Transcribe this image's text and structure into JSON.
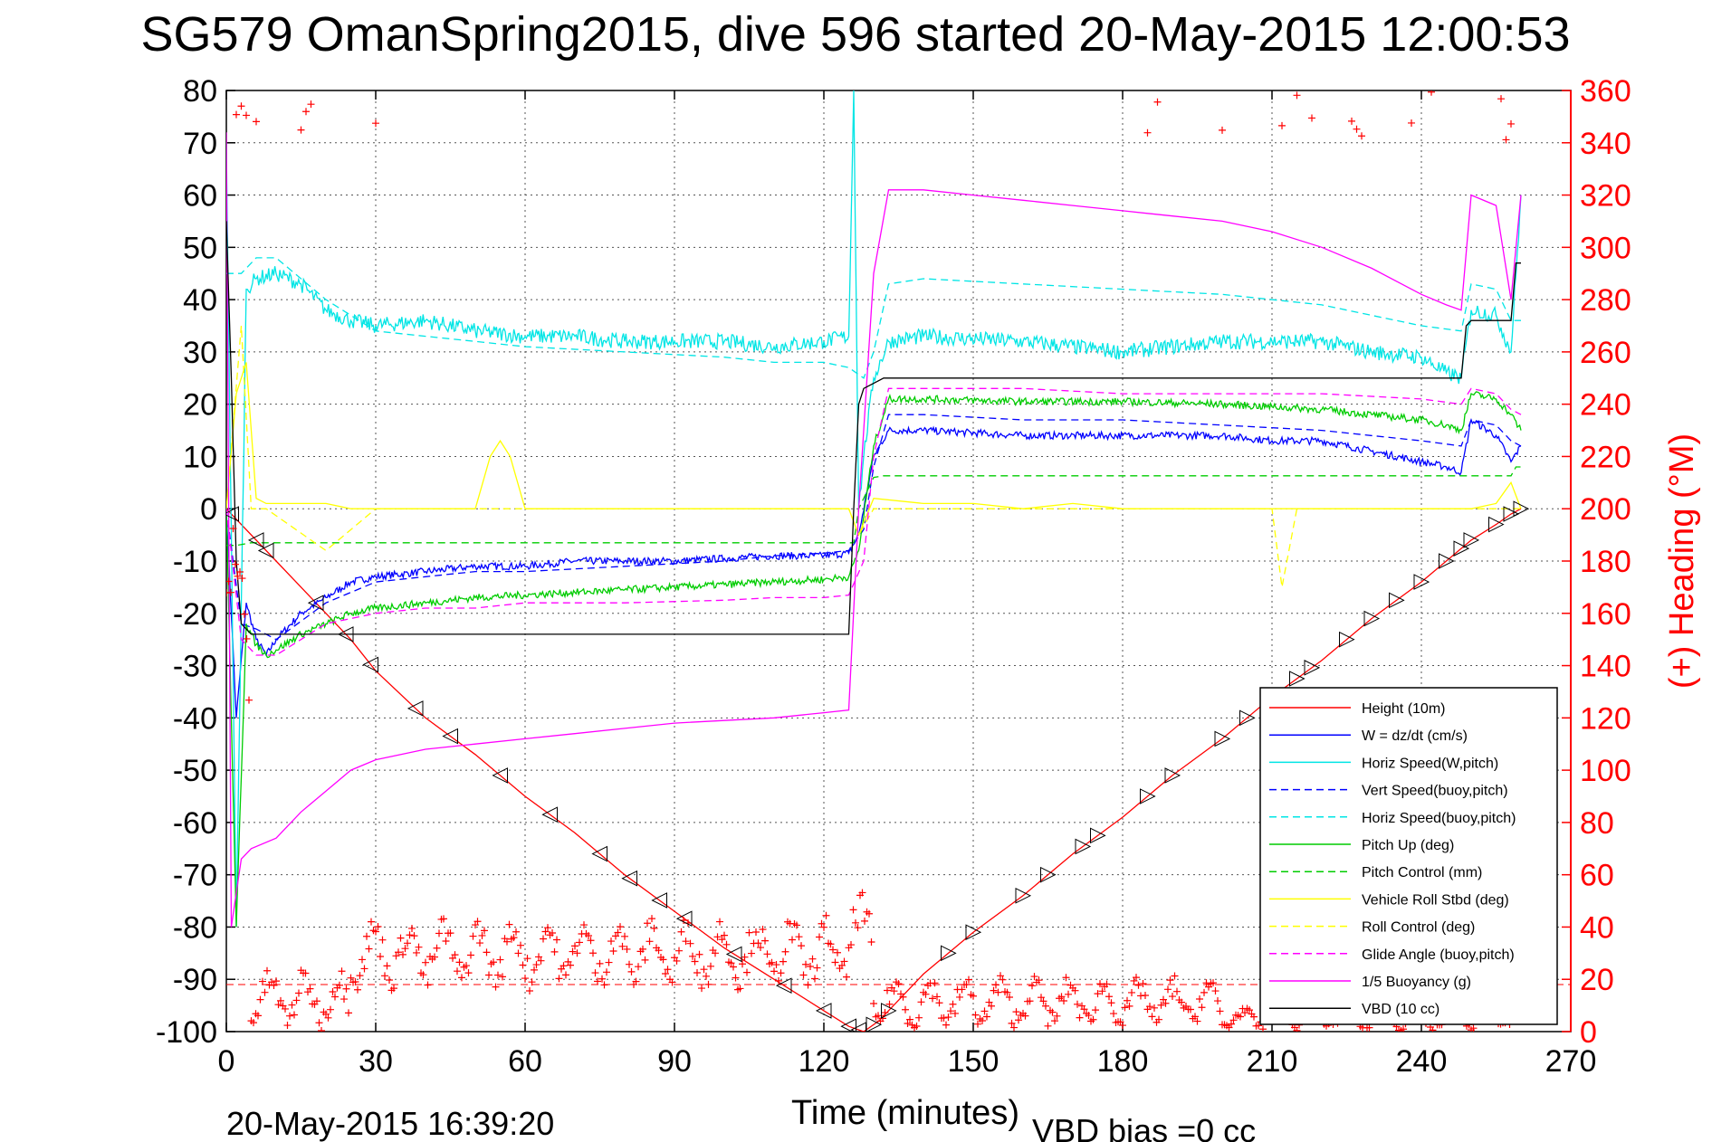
{
  "chart_data": {
    "type": "line",
    "title": "SG579 OmanSpring2015, dive 596 started 20-May-2015 12:00:53",
    "xlabel": "Time (minutes)",
    "ylabel": "",
    "ylabel_right": "(+) Heading (°M)",
    "xlim": [
      0,
      270
    ],
    "ylim": [
      -100,
      80
    ],
    "ylim_right": [
      0,
      360
    ],
    "x_ticks": [
      "0",
      "30",
      "60",
      "90",
      "120",
      "150",
      "180",
      "210",
      "240",
      "270"
    ],
    "y_ticks": [
      "80",
      "70",
      "60",
      "50",
      "40",
      "30",
      "20",
      "10",
      "0",
      "-10",
      "-20",
      "-30",
      "-40",
      "-50",
      "-60",
      "-70",
      "-80",
      "-90",
      "-100"
    ],
    "y_right_ticks": [
      "360",
      "340",
      "320",
      "300",
      "280",
      "260",
      "240",
      "220",
      "200",
      "180",
      "160",
      "140",
      "120",
      "100",
      "80",
      "60",
      "40",
      "20",
      "0"
    ],
    "grid": true,
    "legend_position": "bottom-right",
    "footer_left": "20-May-2015 16:39:20",
    "footer_right": "VBD bias =0 cc",
    "series": [
      {
        "name": "Height (10m)",
        "color": "#ff0000",
        "style": "solid",
        "x": [
          0,
          10,
          20,
          25,
          30,
          40,
          50,
          60,
          70,
          80,
          90,
          100,
          110,
          120,
          125,
          128,
          131,
          135,
          140,
          150,
          160,
          170,
          180,
          190,
          200,
          210,
          220,
          230,
          240,
          250,
          255,
          258,
          260
        ],
        "y": [
          0,
          -10,
          -20,
          -25,
          -31,
          -40,
          -47,
          -55,
          -62,
          -70,
          -77,
          -84,
          -90,
          -96,
          -99,
          -100,
          -98,
          -94,
          -89,
          -81,
          -74,
          -66,
          -59,
          -51,
          -44,
          -36,
          -29,
          -21,
          -14,
          -6,
          -3,
          -1,
          0
        ]
      },
      {
        "name": "W = dz/dt (cm/s)",
        "color": "#0000ff",
        "style": "solid",
        "x": [
          0,
          2,
          4,
          6,
          8,
          10,
          15,
          20,
          25,
          30,
          40,
          50,
          60,
          70,
          80,
          90,
          100,
          110,
          120,
          125,
          127,
          130,
          133,
          140,
          160,
          180,
          200,
          210,
          220,
          230,
          240,
          245,
          248,
          250,
          255,
          258,
          260
        ],
        "y": [
          0,
          -40,
          -18,
          -25,
          -28,
          -25,
          -20,
          -17,
          -14,
          -13,
          -12,
          -11,
          -11,
          -10,
          -10,
          -10,
          -9.5,
          -9,
          -9,
          -8.5,
          -5,
          10,
          15,
          15,
          14,
          14,
          14,
          13,
          13,
          11,
          9,
          8,
          7,
          17,
          14,
          9,
          12
        ]
      },
      {
        "name": "Horiz Speed(W,pitch)",
        "color": "#00e5e5",
        "style": "solid",
        "x": [
          0,
          2,
          4,
          6,
          10,
          15,
          20,
          25,
          30,
          40,
          50,
          60,
          70,
          80,
          90,
          100,
          110,
          120,
          125,
          126,
          127,
          128,
          130,
          133,
          140,
          160,
          180,
          200,
          210,
          220,
          230,
          240,
          245,
          248,
          250,
          255,
          258,
          260
        ],
        "y": [
          70,
          -80,
          42,
          44,
          45,
          43,
          38,
          36,
          35,
          36,
          34,
          33,
          33,
          32,
          32,
          32,
          31,
          32,
          33,
          80,
          0,
          10,
          25,
          32,
          33,
          32,
          30,
          32,
          32,
          32,
          30,
          29,
          26,
          25,
          38,
          37,
          30,
          60
        ]
      },
      {
        "name": "Vert Speed(buoy,pitch)",
        "color": "#0000ff",
        "style": "dashed",
        "x": [
          0,
          3,
          6,
          10,
          20,
          30,
          40,
          50,
          60,
          80,
          100,
          110,
          120,
          125,
          128,
          130,
          133,
          140,
          160,
          180,
          200,
          220,
          240,
          248,
          250,
          255,
          258,
          260
        ],
        "y": [
          0,
          -22,
          -23,
          -25,
          -18,
          -14,
          -13,
          -12,
          -12,
          -11,
          -10,
          -9,
          -8.5,
          -8,
          -4,
          8,
          18,
          18,
          17,
          17,
          16,
          15,
          13,
          12,
          17,
          16,
          13,
          12
        ]
      },
      {
        "name": "Horiz Speed(buoy,pitch)",
        "color": "#00e5e5",
        "style": "dashed",
        "x": [
          0,
          3,
          6,
          10,
          20,
          30,
          40,
          50,
          60,
          80,
          100,
          110,
          120,
          125,
          128,
          130,
          133,
          140,
          160,
          180,
          200,
          220,
          240,
          248,
          250,
          255,
          258,
          260
        ],
        "y": [
          45,
          45,
          48,
          48,
          40,
          34,
          33,
          32,
          31,
          30,
          29,
          28,
          28,
          27,
          25,
          30,
          43,
          44,
          43,
          42,
          41,
          39,
          35,
          34,
          43,
          42,
          36,
          36
        ]
      },
      {
        "name": "Pitch Up (deg)",
        "color": "#00cc00",
        "style": "solid",
        "x": [
          0,
          2,
          4,
          6,
          8,
          10,
          15,
          20,
          25,
          30,
          40,
          50,
          60,
          70,
          80,
          90,
          100,
          110,
          120,
          125,
          127,
          130,
          133,
          140,
          160,
          180,
          200,
          210,
          220,
          230,
          240,
          245,
          248,
          250,
          255,
          258,
          260
        ],
        "y": [
          0,
          -80,
          -22,
          -26,
          -28,
          -27,
          -24,
          -22,
          -20,
          -19,
          -18,
          -17,
          -16.5,
          -16,
          -15.5,
          -15,
          -14.5,
          -14,
          -13.5,
          -13,
          -8,
          12,
          21,
          21,
          20.5,
          20.5,
          20,
          19.5,
          19,
          18,
          17,
          16,
          15,
          22,
          21,
          18,
          15
        ]
      },
      {
        "name": "Pitch Control (mm)",
        "color": "#00cc00",
        "style": "dashed",
        "x": [
          0,
          2,
          5,
          126,
          127,
          130,
          132,
          258,
          259,
          260
        ],
        "y": [
          -7,
          -7,
          -6.5,
          -6.5,
          0,
          6,
          6.3,
          6.3,
          8,
          8
        ]
      },
      {
        "name": "Vehicle Roll Stbd (deg)",
        "color": "#ffff00",
        "style": "solid",
        "x": [
          0,
          2,
          4,
          6,
          8,
          10,
          20,
          25,
          30,
          40,
          50,
          53,
          55,
          57,
          60,
          70,
          80,
          90,
          100,
          110,
          120,
          125,
          127,
          130,
          140,
          150,
          160,
          170,
          180,
          190,
          200,
          210,
          220,
          230,
          240,
          250,
          255,
          258,
          260
        ],
        "y": [
          0,
          22,
          28,
          2,
          1,
          1,
          1,
          0,
          0,
          0,
          0,
          10,
          13,
          10,
          0,
          0,
          0,
          0,
          0,
          0,
          0,
          0,
          -5,
          2,
          1,
          1,
          0,
          1,
          0,
          0,
          0,
          0,
          0,
          0,
          0,
          0,
          1,
          5,
          0
        ]
      },
      {
        "name": "Roll Control (deg)",
        "color": "#ffff00",
        "style": "dashed",
        "x": [
          0,
          3,
          5,
          8,
          20,
          30,
          60,
          90,
          120,
          125,
          127,
          130,
          150,
          180,
          210,
          212,
          215,
          220,
          240,
          260
        ],
        "y": [
          0,
          35,
          0,
          0,
          -8,
          0,
          0,
          0,
          0,
          0,
          -5,
          0,
          0,
          0,
          0,
          -15,
          0,
          0,
          0,
          0
        ]
      },
      {
        "name": "Glide Angle (buoy,pitch)",
        "color": "#ff00ff",
        "style": "dashed",
        "x": [
          0,
          3,
          6,
          10,
          20,
          30,
          40,
          50,
          60,
          80,
          100,
          110,
          120,
          125,
          128,
          130,
          133,
          140,
          160,
          180,
          200,
          220,
          240,
          248,
          250,
          255,
          258,
          260
        ],
        "y": [
          0,
          -25,
          -28,
          -28,
          -22,
          -20,
          -19,
          -19,
          -18,
          -18,
          -17.5,
          -17,
          -17,
          -16.5,
          -10,
          10,
          23,
          23,
          23,
          22,
          22,
          22,
          21,
          20,
          23,
          22,
          19,
          18
        ]
      },
      {
        "name": "1/5 Buoyancy (g)",
        "color": "#ff00ff",
        "style": "solid",
        "x": [
          0,
          1,
          3,
          5,
          10,
          15,
          20,
          25,
          30,
          40,
          50,
          60,
          70,
          80,
          90,
          100,
          110,
          120,
          125,
          127,
          130,
          133,
          140,
          150,
          160,
          170,
          180,
          190,
          200,
          210,
          220,
          230,
          240,
          245,
          248,
          250,
          255,
          258,
          260
        ],
        "y": [
          72,
          -80,
          -67,
          -65,
          -63,
          -58,
          -54,
          -50,
          -48,
          -46,
          -45,
          -44,
          -43,
          -42,
          -41,
          -40.5,
          -40,
          -39,
          -38.5,
          0,
          45,
          61,
          61,
          60,
          59,
          58,
          57,
          56,
          55,
          53,
          50,
          46,
          41,
          39,
          38,
          60,
          58,
          40,
          60
        ]
      },
      {
        "name": "VBD (10 cc)",
        "color": "#000000",
        "style": "solid",
        "x": [
          0,
          1,
          2,
          3,
          5,
          10,
          20,
          30,
          60,
          90,
          120,
          125,
          126,
          127,
          128,
          130,
          131,
          132,
          133,
          135,
          140,
          150,
          180,
          210,
          240,
          248,
          249,
          250,
          255,
          258,
          259,
          260
        ],
        "y": [
          55,
          25,
          -10,
          -22,
          -24,
          -24,
          -24,
          -24,
          -24,
          -24,
          -24,
          -24,
          0,
          20,
          23,
          24,
          24.5,
          25,
          25,
          25,
          25,
          25,
          25,
          25,
          25,
          25,
          35,
          36,
          36,
          36,
          47,
          47
        ]
      }
    ],
    "heading_points_desc": "scattered red + markers",
    "heading_bands": [
      [
        0,
        5,
        120,
        200
      ],
      [
        5,
        25,
        0,
        25
      ],
      [
        25,
        60,
        15,
        45
      ],
      [
        60,
        125,
        15,
        45
      ],
      [
        125,
        130,
        20,
        55
      ],
      [
        130,
        200,
        0,
        22
      ],
      [
        200,
        260,
        0,
        10
      ]
    ]
  }
}
